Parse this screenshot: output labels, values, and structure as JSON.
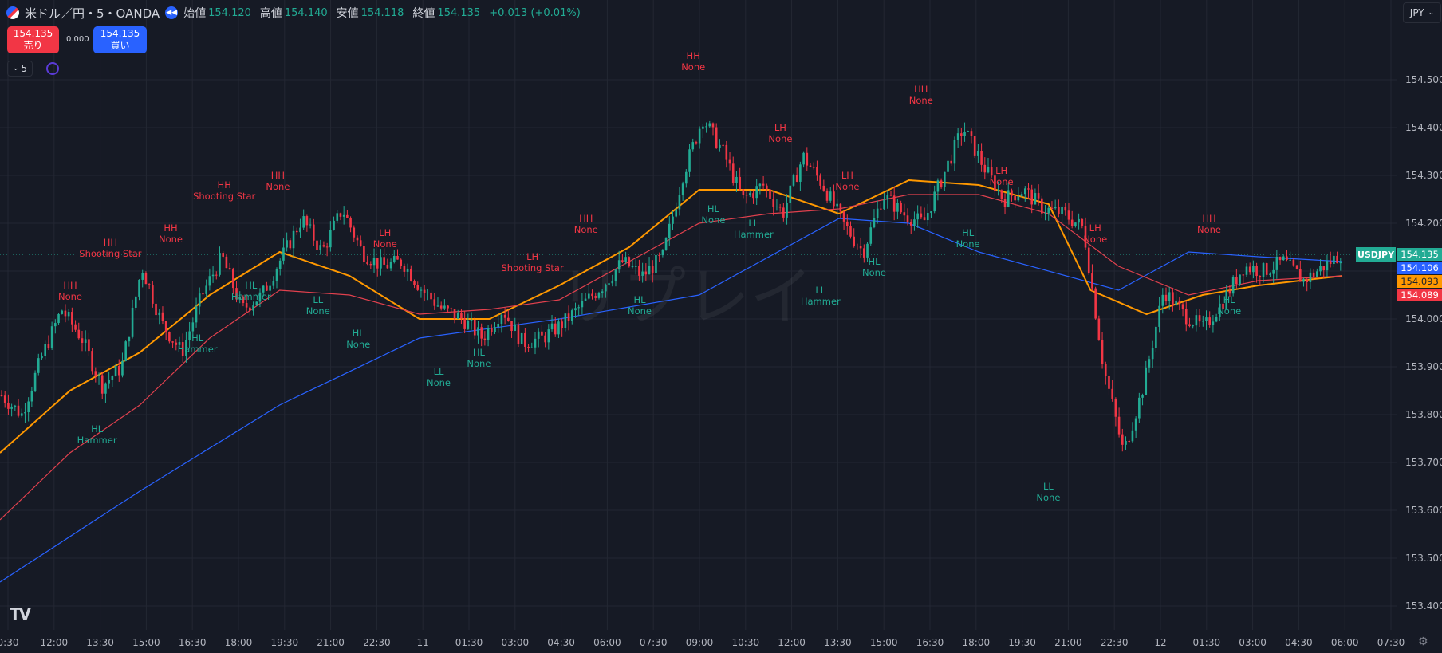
{
  "header": {
    "symbol_title": "米ドル／円・5・OANDA",
    "ohlc": [
      {
        "label": "始値",
        "value": "154.120"
      },
      {
        "label": "高値",
        "value": "154.140"
      },
      {
        "label": "安値",
        "value": "154.118"
      },
      {
        "label": "終値",
        "value": "154.135"
      }
    ],
    "change": "+0.013 (+0.01%)",
    "currency": "JPY",
    "interval": "5"
  },
  "trade": {
    "sell_price": "154.135",
    "sell_label": "売り",
    "spread": "0.000",
    "buy_price": "154.135",
    "buy_label": "買い"
  },
  "watermark": "リプレイ",
  "colors": {
    "background": "#161a25",
    "up": "#22ab94",
    "down": "#f23645",
    "ma_orange": "#ff9800",
    "ma_red": "#e2414e",
    "ma_blue": "#2962ff"
  },
  "chart_data": {
    "type": "line",
    "series_kind": "candlestick_with_moving_averages",
    "ylim": [
      153.35,
      154.65
    ],
    "y_ticks": [
      153.4,
      153.5,
      153.6,
      153.7,
      153.8,
      153.9,
      154.0,
      154.1,
      154.2,
      154.3,
      154.4,
      154.5
    ],
    "x_tick_labels": [
      "0:30",
      "12:00",
      "13:30",
      "15:00",
      "16:30",
      "18:00",
      "19:30",
      "21:00",
      "22:30",
      "11",
      "01:30",
      "03:00",
      "04:30",
      "06:00",
      "07:30",
      "09:00",
      "10:30",
      "12:00",
      "13:30",
      "15:00",
      "16:30",
      "18:00",
      "19:30",
      "21:00",
      "22:30",
      "12",
      "01:30",
      "03:00",
      "04:30",
      "06:00",
      "07:30"
    ],
    "price_path": [
      [
        0,
        153.84
      ],
      [
        1,
        153.8
      ],
      [
        2,
        153.92
      ],
      [
        3,
        154.02
      ],
      [
        4,
        153.96
      ],
      [
        5,
        153.86
      ],
      [
        6,
        153.9
      ],
      [
        7,
        154.11
      ],
      [
        8,
        153.99
      ],
      [
        9,
        153.93
      ],
      [
        10,
        154.05
      ],
      [
        11,
        154.13
      ],
      [
        12,
        154.02
      ],
      [
        13,
        154.05
      ],
      [
        14,
        154.13
      ],
      [
        15,
        154.21
      ],
      [
        16,
        154.14
      ],
      [
        17,
        154.23
      ],
      [
        18,
        154.14
      ],
      [
        19,
        154.11
      ],
      [
        20,
        154.12
      ],
      [
        21,
        154.06
      ],
      [
        22,
        154.02
      ],
      [
        23,
        154.0
      ],
      [
        24,
        153.96
      ],
      [
        25,
        154.02
      ],
      [
        26,
        153.95
      ],
      [
        27,
        153.96
      ],
      [
        28,
        153.99
      ],
      [
        29,
        154.03
      ],
      [
        30,
        154.07
      ],
      [
        31,
        154.12
      ],
      [
        32,
        154.09
      ],
      [
        33,
        154.13
      ],
      [
        34,
        154.3
      ],
      [
        35,
        154.42
      ],
      [
        36,
        154.35
      ],
      [
        37,
        154.25
      ],
      [
        38,
        154.28
      ],
      [
        39,
        154.22
      ],
      [
        40,
        154.34
      ],
      [
        41,
        154.28
      ],
      [
        42,
        154.2
      ],
      [
        43,
        154.14
      ],
      [
        44,
        154.26
      ],
      [
        45,
        154.22
      ],
      [
        46,
        154.2
      ],
      [
        47,
        154.3
      ],
      [
        48,
        154.4
      ],
      [
        49,
        154.32
      ],
      [
        50,
        154.25
      ],
      [
        51,
        154.27
      ],
      [
        52,
        154.23
      ],
      [
        53,
        154.22
      ],
      [
        54,
        154.19
      ],
      [
        55,
        153.9
      ],
      [
        56,
        153.72
      ],
      [
        57,
        153.86
      ],
      [
        58,
        154.06
      ],
      [
        59,
        154.01
      ],
      [
        60,
        153.98
      ],
      [
        61,
        154.04
      ],
      [
        62,
        154.11
      ],
      [
        63,
        154.1
      ],
      [
        64,
        154.12
      ],
      [
        65,
        154.08
      ],
      [
        66,
        154.11
      ],
      [
        67,
        154.14
      ]
    ],
    "series": [
      {
        "name": "USDJPY",
        "color": "#22ab94",
        "last_value": "154.135"
      },
      {
        "color": "#2962ff",
        "last_value": "154.106",
        "points": [
          [
            0,
            153.45
          ],
          [
            10,
            153.64
          ],
          [
            20,
            153.82
          ],
          [
            30,
            153.96
          ],
          [
            40,
            154.0
          ],
          [
            50,
            154.05
          ],
          [
            60,
            154.21
          ],
          [
            65,
            154.2
          ],
          [
            70,
            154.14
          ],
          [
            80,
            154.06
          ],
          [
            85,
            154.14
          ],
          [
            90,
            154.13
          ],
          [
            96,
            154.12
          ]
        ]
      },
      {
        "color": "#ff9800",
        "last_value": "154.093",
        "points": [
          [
            0,
            153.72
          ],
          [
            5,
            153.85
          ],
          [
            10,
            153.93
          ],
          [
            15,
            154.05
          ],
          [
            20,
            154.14
          ],
          [
            25,
            154.09
          ],
          [
            30,
            154.0
          ],
          [
            35,
            154.0
          ],
          [
            40,
            154.07
          ],
          [
            45,
            154.15
          ],
          [
            50,
            154.27
          ],
          [
            55,
            154.27
          ],
          [
            60,
            154.22
          ],
          [
            65,
            154.29
          ],
          [
            70,
            154.28
          ],
          [
            75,
            154.24
          ],
          [
            78,
            154.06
          ],
          [
            82,
            154.01
          ],
          [
            86,
            154.05
          ],
          [
            90,
            154.07
          ],
          [
            96,
            154.09
          ]
        ]
      },
      {
        "color": "#e2414e",
        "last_value": "154.089",
        "points": [
          [
            0,
            153.58
          ],
          [
            5,
            153.72
          ],
          [
            10,
            153.82
          ],
          [
            15,
            153.96
          ],
          [
            20,
            154.06
          ],
          [
            25,
            154.05
          ],
          [
            30,
            154.01
          ],
          [
            35,
            154.02
          ],
          [
            40,
            154.04
          ],
          [
            45,
            154.12
          ],
          [
            50,
            154.2
          ],
          [
            55,
            154.22
          ],
          [
            60,
            154.23
          ],
          [
            65,
            154.26
          ],
          [
            70,
            154.26
          ],
          [
            75,
            154.22
          ],
          [
            80,
            154.11
          ],
          [
            85,
            154.05
          ],
          [
            90,
            154.08
          ],
          [
            96,
            154.09
          ]
        ]
      }
    ],
    "annotations": [
      {
        "t": 5,
        "price": 154.02,
        "pos": "above",
        "color": "red",
        "lines": [
          "HH",
          "None"
        ]
      },
      {
        "t": 7,
        "price": 153.79,
        "pos": "below",
        "color": "green",
        "lines": [
          "HL",
          "Hammer"
        ]
      },
      {
        "t": 8,
        "price": 154.11,
        "pos": "above",
        "color": "red",
        "lines": [
          "HH",
          "Shooting Star"
        ]
      },
      {
        "t": 12.5,
        "price": 154.14,
        "pos": "above",
        "color": "red",
        "lines": [
          "HH",
          "None"
        ]
      },
      {
        "t": 14.5,
        "price": 153.98,
        "pos": "below",
        "color": "green",
        "lines": [
          "HL",
          "Hammer"
        ]
      },
      {
        "t": 16.5,
        "price": 154.23,
        "pos": "above",
        "color": "red",
        "lines": [
          "HH",
          "Shooting Star"
        ]
      },
      {
        "t": 18.5,
        "price": 154.09,
        "pos": "below",
        "color": "green",
        "lines": [
          "HL",
          "Hammer"
        ]
      },
      {
        "t": 20.5,
        "price": 154.25,
        "pos": "above",
        "color": "red",
        "lines": [
          "HH",
          "None"
        ]
      },
      {
        "t": 23.5,
        "price": 154.06,
        "pos": "below",
        "color": "green",
        "lines": [
          "LL",
          "None"
        ]
      },
      {
        "t": 26.5,
        "price": 153.99,
        "pos": "below",
        "color": "green",
        "lines": [
          "HL",
          "None"
        ]
      },
      {
        "t": 28.5,
        "price": 154.13,
        "pos": "above",
        "color": "red",
        "lines": [
          "LH",
          "None"
        ]
      },
      {
        "t": 32.5,
        "price": 153.91,
        "pos": "below",
        "color": "green",
        "lines": [
          "LL",
          "None"
        ]
      },
      {
        "t": 35.5,
        "price": 153.95,
        "pos": "below",
        "color": "green",
        "lines": [
          "HL",
          "None"
        ]
      },
      {
        "t": 39.5,
        "price": 154.08,
        "pos": "above",
        "color": "red",
        "lines": [
          "LH",
          "Shooting Star"
        ]
      },
      {
        "t": 43.5,
        "price": 154.16,
        "pos": "above",
        "color": "red",
        "lines": [
          "HH",
          "None"
        ]
      },
      {
        "t": 47.5,
        "price": 154.06,
        "pos": "below",
        "color": "green",
        "lines": [
          "HL",
          "None"
        ]
      },
      {
        "t": 51.5,
        "price": 154.5,
        "pos": "above",
        "color": "red",
        "lines": [
          "HH",
          "None"
        ]
      },
      {
        "t": 53,
        "price": 154.25,
        "pos": "below",
        "color": "green",
        "lines": [
          "HL",
          "None"
        ]
      },
      {
        "t": 56,
        "price": 154.22,
        "pos": "below",
        "color": "green",
        "lines": [
          "LL",
          "Hammer"
        ]
      },
      {
        "t": 58,
        "price": 154.35,
        "pos": "above",
        "color": "red",
        "lines": [
          "LH",
          "None"
        ]
      },
      {
        "t": 61,
        "price": 154.08,
        "pos": "below",
        "color": "green",
        "lines": [
          "LL",
          "Hammer"
        ]
      },
      {
        "t": 63,
        "price": 154.25,
        "pos": "above",
        "color": "red",
        "lines": [
          "LH",
          "None"
        ]
      },
      {
        "t": 65,
        "price": 154.14,
        "pos": "below",
        "color": "green",
        "lines": [
          "HL",
          "None"
        ]
      },
      {
        "t": 68.5,
        "price": 154.43,
        "pos": "above",
        "color": "red",
        "lines": [
          "HH",
          "None"
        ]
      },
      {
        "t": 72,
        "price": 154.2,
        "pos": "below",
        "color": "green",
        "lines": [
          "HL",
          "None"
        ]
      },
      {
        "t": 74.5,
        "price": 154.26,
        "pos": "above",
        "color": "red",
        "lines": [
          "LH",
          "None"
        ]
      },
      {
        "t": 78,
        "price": 153.67,
        "pos": "below",
        "color": "green",
        "lines": [
          "LL",
          "None"
        ]
      },
      {
        "t": 81.5,
        "price": 154.14,
        "pos": "above",
        "color": "red",
        "lines": [
          "LH",
          "None"
        ]
      },
      {
        "t": 90,
        "price": 154.16,
        "pos": "above",
        "color": "red",
        "lines": [
          "HH",
          "None"
        ]
      },
      {
        "t": 91.5,
        "price": 154.06,
        "pos": "below",
        "color": "green",
        "lines": [
          "HL",
          "None"
        ]
      }
    ]
  }
}
